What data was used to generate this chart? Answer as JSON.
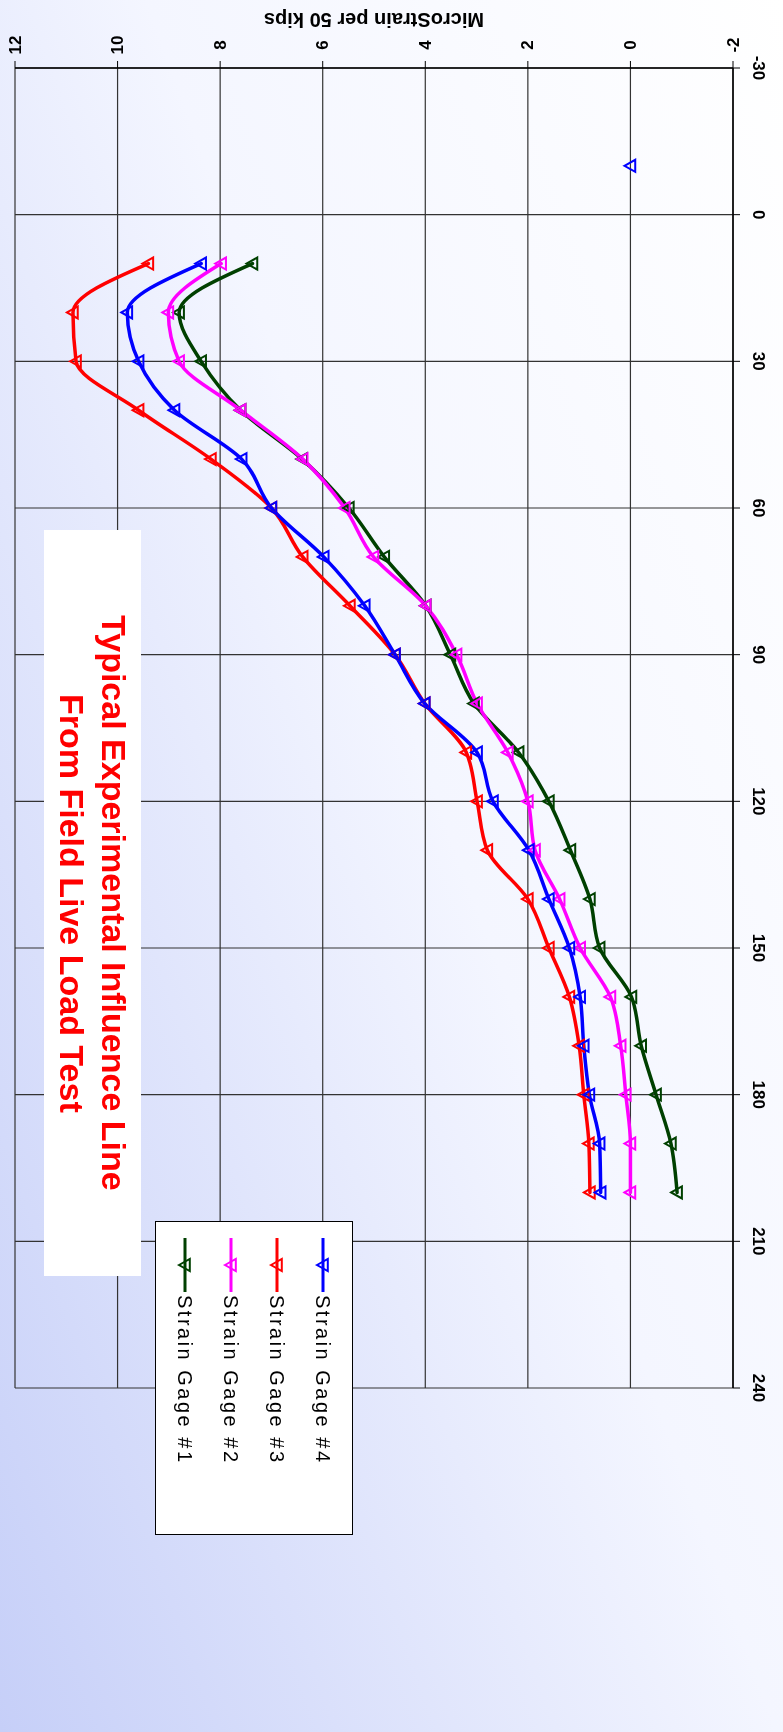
{
  "chart_data": {
    "type": "line",
    "title": "Typical Experimental Influence Line From Field Live Load Test",
    "xlabel": "MicroStrain per 50 kips",
    "series": [
      {
        "name": "Strain Gage #1",
        "color": "#004000",
        "x": [
          7.37,
          8.8,
          8.37,
          7.6,
          6.4,
          5.49,
          4.8,
          3.99,
          3.51,
          3.05,
          2.18,
          1.59,
          1.17,
          0.79,
          0.6,
          -0.02,
          -0.21,
          -0.5,
          -0.79,
          -0.91
        ],
        "values": [
          10,
          20,
          30,
          40,
          50,
          60,
          70,
          80,
          90,
          100,
          110,
          120,
          130,
          140,
          150,
          160,
          170,
          180,
          190,
          200
        ]
      },
      {
        "name": "Strain Gage #2",
        "color": "#ff00ff",
        "x": [
          7.98,
          9.01,
          8.8,
          7.6,
          6.39,
          5.57,
          5.01,
          3.99,
          3.39,
          2.99,
          2.39,
          2.0,
          1.86,
          1.38,
          0.98,
          0.39,
          0.19,
          0.09,
          0.0,
          0.0
        ],
        "values": [
          10,
          20,
          30,
          40,
          50,
          60,
          70,
          80,
          90,
          100,
          110,
          120,
          130,
          140,
          150,
          160,
          170,
          180,
          190,
          200
        ]
      },
      {
        "name": "Strain Gage #3",
        "color": "#ff0000",
        "x": [
          9.4,
          10.87,
          10.81,
          9.59,
          8.18,
          7.0,
          6.39,
          5.47,
          4.59,
          4.01,
          3.2,
          2.99,
          2.79,
          2.0,
          1.59,
          1.19,
          1.0,
          0.91,
          0.81,
          0.79
        ],
        "values": [
          10,
          20,
          30,
          40,
          50,
          60,
          70,
          80,
          90,
          100,
          110,
          120,
          130,
          140,
          150,
          160,
          170,
          180,
          190,
          200
        ]
      },
      {
        "name": "Strain Gage #4",
        "color": "#0000ff",
        "x": [
          8.37,
          9.81,
          9.59,
          8.89,
          7.58,
          7.0,
          5.98,
          5.18,
          4.59,
          4.01,
          2.99,
          2.68,
          1.98,
          1.59,
          1.19,
          0.98,
          0.91,
          0.8,
          0.6,
          0.58
        ],
        "values": [
          10,
          20,
          30,
          40,
          50,
          60,
          70,
          80,
          90,
          100,
          110,
          120,
          130,
          140,
          150,
          160,
          170,
          180,
          190,
          200
        ]
      },
      {
        "type": "scatter",
        "color": "#0000ff",
        "x": [
          0
        ],
        "values": [
          -10
        ]
      }
    ],
    "xlim": [
      12,
      -2
    ],
    "xticks": [
      12,
      10,
      8,
      6,
      4,
      2,
      0,
      -2
    ],
    "ylim": [
      240,
      -30
    ],
    "yticks": [
      -30,
      0,
      30,
      60,
      90,
      120,
      150,
      180,
      210,
      240
    ],
    "grid": true,
    "legend": "bottom left",
    "marker": "triangle",
    "line_style": "solid"
  }
}
